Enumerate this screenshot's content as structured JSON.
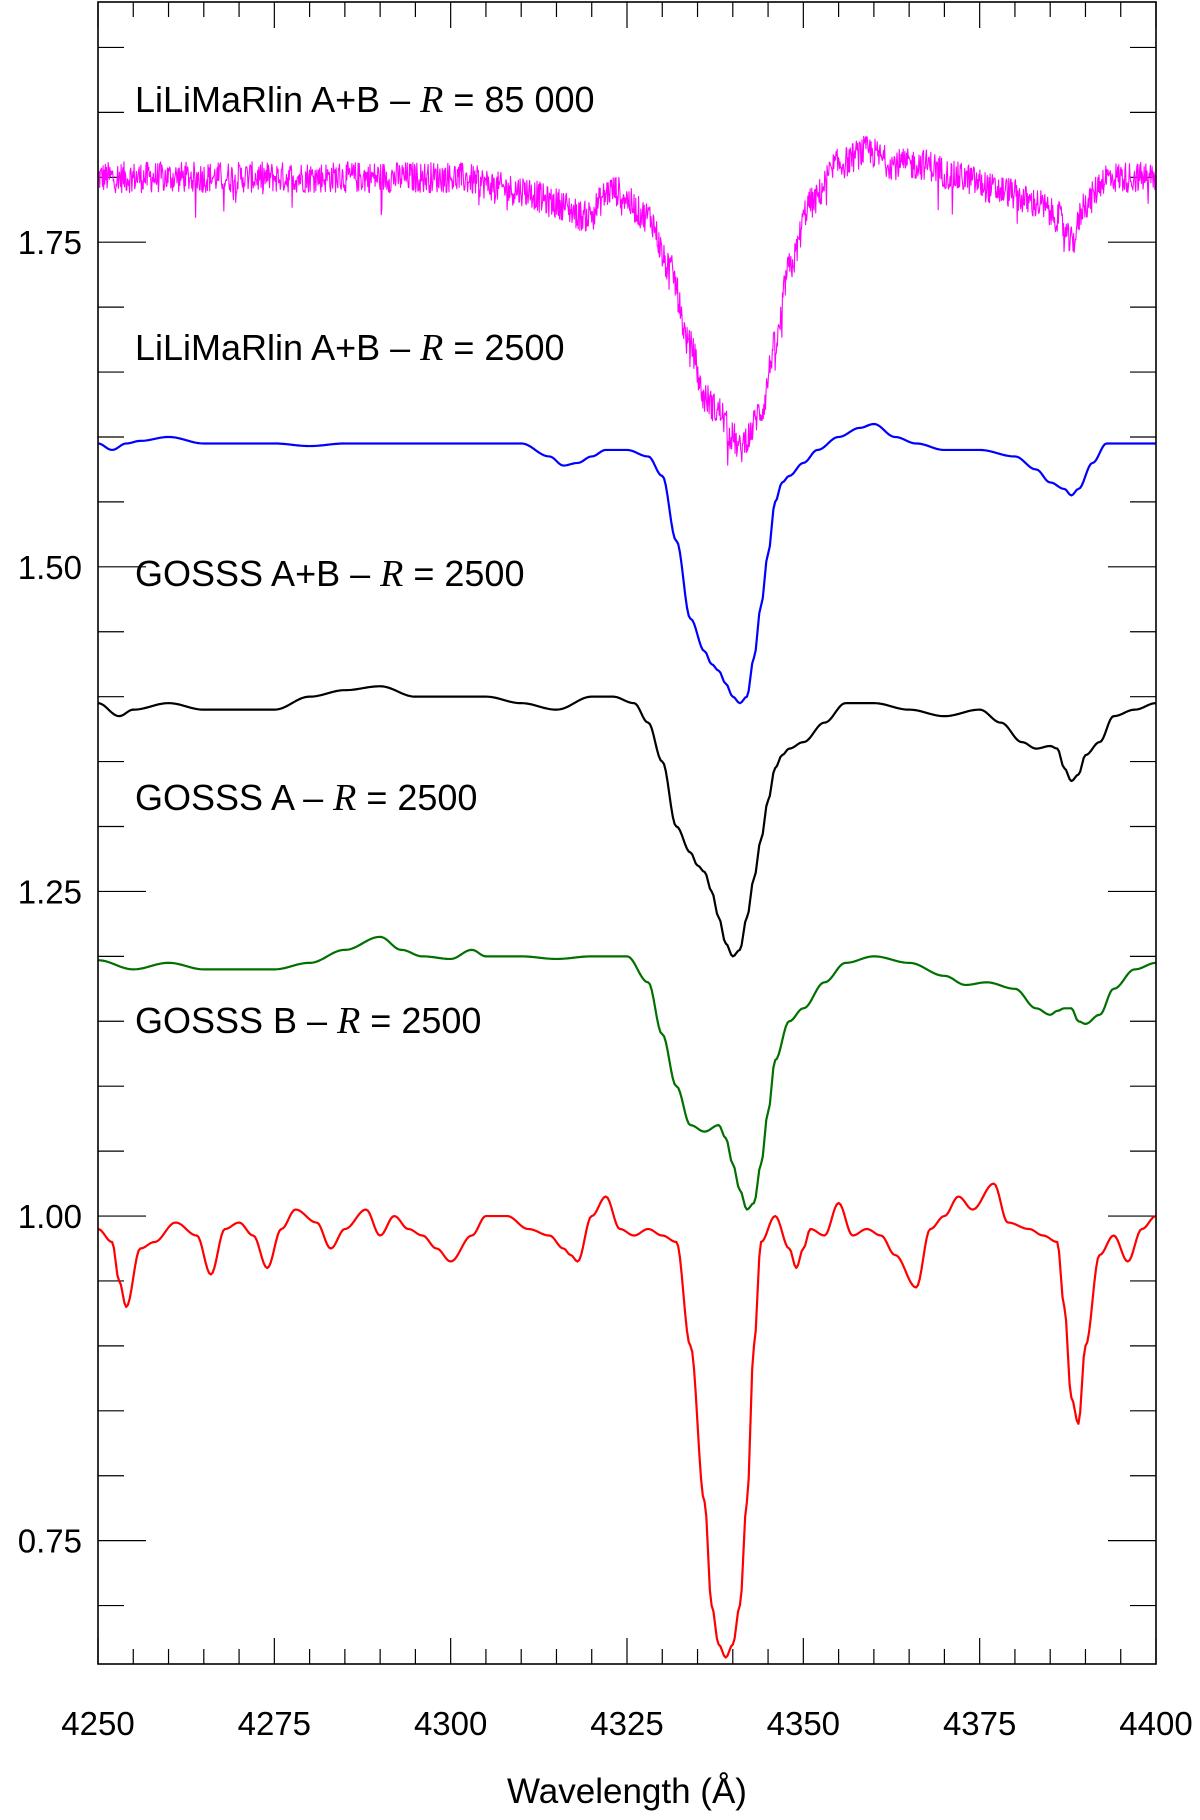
{
  "chart_data": {
    "type": "line",
    "xlabel": "Wavelength (Å)",
    "ylabel": "",
    "xlim": [
      4250,
      4400
    ],
    "ylim": [
      0.655,
      1.935
    ],
    "x_ticks": [
      "4250",
      "4275",
      "4300",
      "4325",
      "4350",
      "4375",
      "4400"
    ],
    "y_ticks": [
      "0.75",
      "1.00",
      "1.25",
      "1.50",
      "1.75"
    ],
    "grid": false,
    "legend": "none",
    "series": [
      {
        "name": "LiLiMaRlin A+B – R = 85 000",
        "label_prefix": "LiLiMaRlin A+B – ",
        "label_var": "R",
        "label_suffix": " = 85 000",
        "color": "#ff00ff",
        "noise": 0.012,
        "x": [
          4250,
          4260,
          4270,
          4280,
          4290,
          4300,
          4310,
          4315,
          4319,
          4323,
          4328,
          4331,
          4334,
          4336,
          4338,
          4340,
          4341,
          4342,
          4344,
          4346,
          4348,
          4351,
          4355,
          4359,
          4363,
          4367,
          4372,
          4378,
          4383,
          4386,
          4388,
          4390,
          4393,
          4396,
          4400
        ],
        "y": [
          1.8,
          1.8,
          1.8,
          1.8,
          1.8,
          1.8,
          1.79,
          1.78,
          1.77,
          1.79,
          1.77,
          1.73,
          1.67,
          1.63,
          1.62,
          1.6,
          1.59,
          1.6,
          1.62,
          1.67,
          1.73,
          1.78,
          1.81,
          1.82,
          1.81,
          1.81,
          1.8,
          1.79,
          1.78,
          1.77,
          1.75,
          1.78,
          1.8,
          1.8,
          1.8
        ]
      },
      {
        "name": "LiLiMaRlin A+B – R = 2500",
        "label_prefix": "LiLiMaRlin A+B – ",
        "label_var": "R",
        "label_suffix": " = 2500",
        "color": "#0000ff",
        "noise": 0,
        "x": [
          4250,
          4252,
          4254,
          4256,
          4260,
          4265,
          4270,
          4275,
          4280,
          4285,
          4290,
          4295,
          4300,
          4305,
          4310,
          4314,
          4316,
          4318,
          4320,
          4322,
          4325,
          4328,
          4330,
          4332,
          4334,
          4336,
          4337,
          4338,
          4339,
          4340,
          4341,
          4342,
          4343,
          4344,
          4345,
          4346,
          4347,
          4348,
          4350,
          4352,
          4355,
          4358,
          4360,
          4363,
          4366,
          4370,
          4375,
          4380,
          4383,
          4385,
          4387,
          4388,
          4389,
          4391,
          4393,
          4396,
          4400
        ],
        "y": [
          1.595,
          1.59,
          1.595,
          1.597,
          1.6,
          1.595,
          1.595,
          1.595,
          1.593,
          1.595,
          1.595,
          1.595,
          1.595,
          1.595,
          1.595,
          1.585,
          1.578,
          1.58,
          1.585,
          1.59,
          1.59,
          1.585,
          1.57,
          1.52,
          1.46,
          1.435,
          1.425,
          1.42,
          1.41,
          1.4,
          1.395,
          1.4,
          1.43,
          1.47,
          1.51,
          1.55,
          1.565,
          1.57,
          1.58,
          1.59,
          1.6,
          1.607,
          1.61,
          1.6,
          1.595,
          1.59,
          1.59,
          1.585,
          1.575,
          1.565,
          1.56,
          1.555,
          1.56,
          1.58,
          1.595,
          1.595,
          1.595
        ]
      },
      {
        "name": "GOSSS A+B – R = 2500",
        "label_prefix": "GOSSS A+B – ",
        "label_var": "R",
        "label_suffix": " = 2500",
        "color": "#000000",
        "noise": 0,
        "x": [
          4250,
          4253,
          4255,
          4260,
          4265,
          4270,
          4275,
          4280,
          4285,
          4290,
          4295,
          4300,
          4305,
          4310,
          4315,
          4320,
          4323,
          4326,
          4328,
          4330,
          4332,
          4334,
          4335,
          4336,
          4337,
          4338,
          4339,
          4340,
          4341,
          4342,
          4343,
          4344,
          4345,
          4346,
          4347,
          4348,
          4350,
          4353,
          4356,
          4360,
          4365,
          4370,
          4375,
          4378,
          4381,
          4383,
          4385,
          4386,
          4387,
          4388,
          4389,
          4390,
          4392,
          4394,
          4397,
          4400
        ],
        "y": [
          1.395,
          1.385,
          1.39,
          1.395,
          1.39,
          1.39,
          1.39,
          1.4,
          1.405,
          1.408,
          1.4,
          1.4,
          1.4,
          1.395,
          1.39,
          1.4,
          1.4,
          1.395,
          1.38,
          1.35,
          1.3,
          1.28,
          1.27,
          1.265,
          1.25,
          1.23,
          1.21,
          1.2,
          1.205,
          1.23,
          1.26,
          1.29,
          1.32,
          1.345,
          1.355,
          1.36,
          1.365,
          1.38,
          1.395,
          1.395,
          1.39,
          1.385,
          1.39,
          1.38,
          1.365,
          1.36,
          1.362,
          1.36,
          1.345,
          1.335,
          1.34,
          1.355,
          1.365,
          1.385,
          1.39,
          1.395
        ]
      },
      {
        "name": "GOSSS A – R = 2500",
        "label_prefix": "GOSSS A – ",
        "label_var": "R",
        "label_suffix": " = 2500",
        "color": "#007000",
        "noise": 0,
        "x": [
          4250,
          4255,
          4260,
          4265,
          4270,
          4275,
          4280,
          4285,
          4290,
          4293,
          4296,
          4300,
          4303,
          4305,
          4310,
          4315,
          4320,
          4325,
          4328,
          4330,
          4332,
          4334,
          4336,
          4338,
          4339,
          4340,
          4341,
          4342,
          4343,
          4344,
          4345,
          4346,
          4348,
          4350,
          4353,
          4356,
          4360,
          4365,
          4370,
          4373,
          4376,
          4380,
          4383,
          4385,
          4386,
          4387,
          4388,
          4389,
          4390,
          4392,
          4394,
          4397,
          4400
        ],
        "y": [
          1.197,
          1.19,
          1.195,
          1.19,
          1.19,
          1.19,
          1.195,
          1.205,
          1.215,
          1.205,
          1.2,
          1.198,
          1.205,
          1.2,
          1.2,
          1.198,
          1.2,
          1.2,
          1.18,
          1.14,
          1.1,
          1.07,
          1.065,
          1.07,
          1.06,
          1.04,
          1.02,
          1.005,
          1.01,
          1.04,
          1.08,
          1.12,
          1.15,
          1.16,
          1.18,
          1.195,
          1.2,
          1.195,
          1.185,
          1.178,
          1.18,
          1.175,
          1.16,
          1.155,
          1.158,
          1.16,
          1.16,
          1.15,
          1.148,
          1.155,
          1.175,
          1.19,
          1.195
        ]
      },
      {
        "name": "GOSSS B – R = 2500",
        "label_prefix": "GOSSS B – ",
        "label_var": "R",
        "label_suffix": " = 2500",
        "color": "#ff0000",
        "noise": 0,
        "x": [
          4250,
          4252,
          4253,
          4254,
          4256,
          4258,
          4261,
          4264,
          4266,
          4268,
          4270,
          4272,
          4274,
          4276,
          4278,
          4281,
          4283,
          4285,
          4288,
          4290,
          4292,
          4294,
          4296,
          4298,
          4300,
          4303,
          4305,
          4308,
          4311,
          4314,
          4316,
          4317,
          4318,
          4320,
          4322,
          4324,
          4326,
          4328,
          4330,
          4332,
          4334,
          4336,
          4337,
          4338,
          4339,
          4340,
          4341,
          4342,
          4343,
          4344,
          4346,
          4348,
          4349,
          4350,
          4351,
          4353,
          4355,
          4357,
          4359,
          4361,
          4363,
          4366,
          4368,
          4370,
          4372,
          4374,
          4377,
          4379,
          4382,
          4384,
          4386,
          4387,
          4388,
          4389,
          4390,
          4392,
          4394,
          4396,
          4398,
          4400
        ],
        "y": [
          0.99,
          0.98,
          0.95,
          0.93,
          0.975,
          0.98,
          0.995,
          0.985,
          0.955,
          0.99,
          0.995,
          0.985,
          0.96,
          0.99,
          1.005,
          0.995,
          0.975,
          0.99,
          1.005,
          0.985,
          1.0,
          0.99,
          0.985,
          0.975,
          0.965,
          0.985,
          1.0,
          1.0,
          0.99,
          0.985,
          0.975,
          0.97,
          0.965,
          1.0,
          1.015,
          0.99,
          0.985,
          0.99,
          0.985,
          0.98,
          0.9,
          0.78,
          0.7,
          0.67,
          0.66,
          0.67,
          0.7,
          0.78,
          0.9,
          0.98,
          1.0,
          0.975,
          0.96,
          0.975,
          0.99,
          0.985,
          1.01,
          0.985,
          0.99,
          0.985,
          0.97,
          0.945,
          0.99,
          1.0,
          1.015,
          1.005,
          1.025,
          0.995,
          0.99,
          0.985,
          0.98,
          0.93,
          0.86,
          0.84,
          0.9,
          0.97,
          0.985,
          0.965,
          0.99,
          1.0
        ]
      }
    ]
  }
}
